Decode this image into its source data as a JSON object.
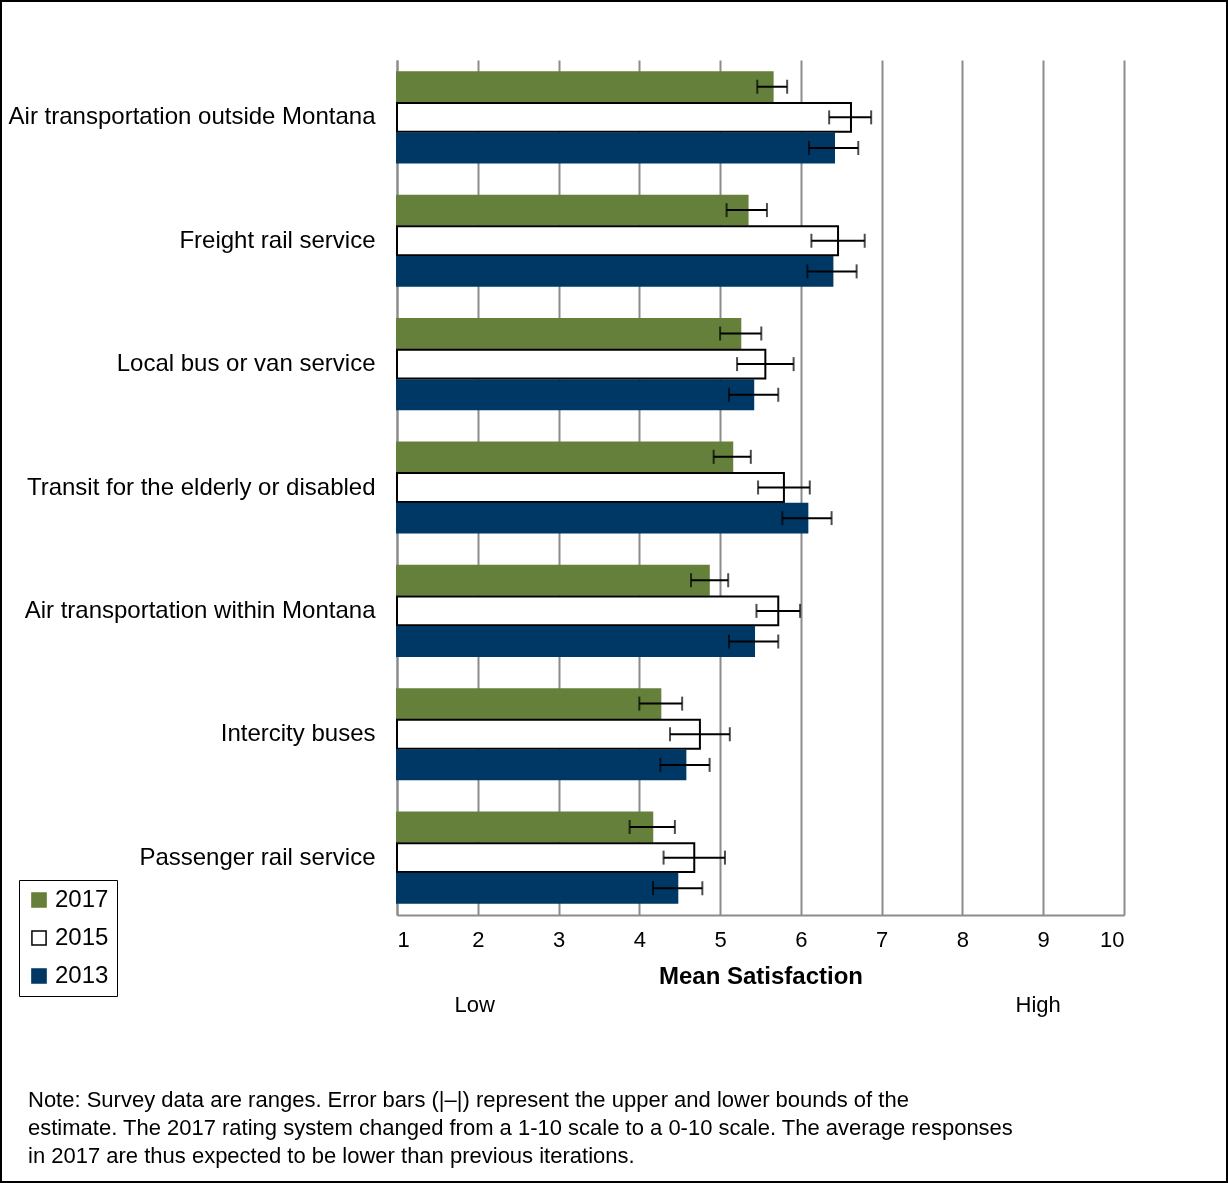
{
  "chart_data": {
    "type": "bar",
    "orientation": "horizontal",
    "categories": [
      "Air transportation outside Montana",
      "Freight rail service",
      "Local bus or van service",
      "Transit for the elderly or disabled",
      "Air transportation within Montana",
      "Intercity buses",
      "Passenger rail service"
    ],
    "series": [
      {
        "name": "2017",
        "color": "#65803a",
        "values": [
          5.65,
          5.34,
          5.25,
          5.15,
          4.86,
          4.26,
          4.16
        ],
        "errors": [
          [
            5.46,
            5.83
          ],
          [
            5.08,
            5.58
          ],
          [
            5.0,
            5.51
          ],
          [
            4.92,
            5.38
          ],
          [
            4.64,
            5.1
          ],
          [
            4.0,
            4.53
          ],
          [
            3.88,
            4.44
          ]
        ]
      },
      {
        "name": "2015",
        "color": "#ffffff",
        "values": [
          6.62,
          6.46,
          5.56,
          5.79,
          5.72,
          4.75,
          4.68
        ],
        "errors": [
          [
            6.35,
            6.87
          ],
          [
            6.13,
            6.79
          ],
          [
            5.21,
            5.91
          ],
          [
            5.47,
            6.11
          ],
          [
            5.45,
            5.99
          ],
          [
            4.38,
            5.12
          ],
          [
            4.3,
            5.06
          ]
        ]
      },
      {
        "name": "2013",
        "color": "#003865",
        "values": [
          6.41,
          6.39,
          5.41,
          6.08,
          5.42,
          4.57,
          4.47
        ],
        "errors": [
          [
            6.1,
            6.71
          ],
          [
            6.08,
            6.69
          ],
          [
            5.11,
            5.72
          ],
          [
            5.77,
            6.38
          ],
          [
            5.11,
            5.72
          ],
          [
            4.26,
            4.87
          ],
          [
            4.17,
            4.78
          ]
        ]
      }
    ],
    "xlabel": "Mean Satisfaction",
    "xlim": [
      1,
      10
    ],
    "xticks": [
      1,
      2,
      3,
      4,
      5,
      6,
      7,
      8,
      9,
      10
    ],
    "grid": "x",
    "legend": "bottom left",
    "annotations": [
      "Low",
      "High",
      "Note: Survey data are ranges. Error bars (|–|) represent the upper and lower bounds of the estimate. The 2017 rating system changed from a 1-10 scale to a 0-10 scale. The average responses in 2017 are thus expected to be lower than previous iterations."
    ]
  }
}
